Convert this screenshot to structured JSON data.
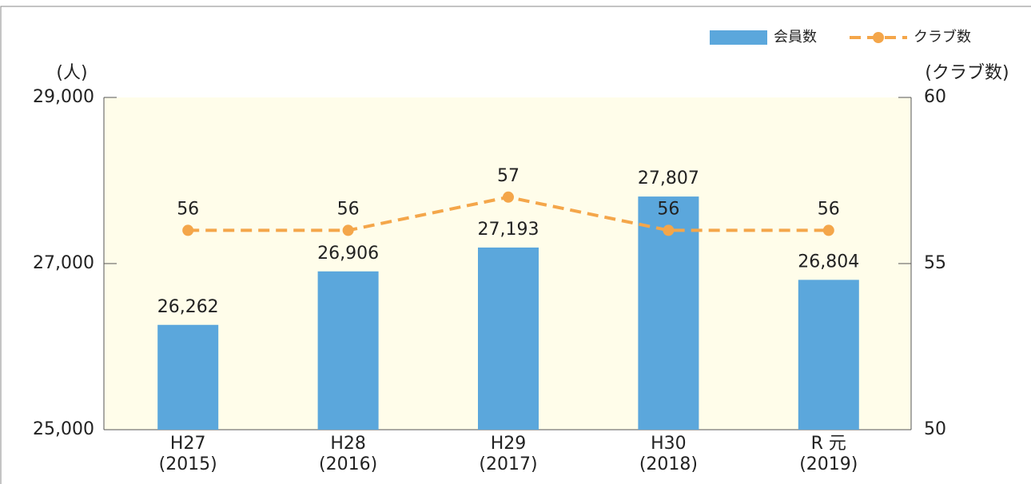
{
  "chart_data": {
    "type": "bar_line",
    "ylabel": "(人)",
    "y2label": "(クラブ数)",
    "categories": [
      [
        "H27",
        "(2015)"
      ],
      [
        "H28",
        "(2016)"
      ],
      [
        "H29",
        "(2017)"
      ],
      [
        "H30",
        "(2018)"
      ],
      [
        "R 元",
        "(2019)"
      ]
    ],
    "series": [
      {
        "name": "会員数",
        "type": "bar",
        "color": "#5ba7dc",
        "values": [
          26262,
          26906,
          27193,
          27807,
          26804
        ],
        "value_labels": [
          "26,262",
          "26,906",
          "27,193",
          "27,807",
          "26,804"
        ]
      },
      {
        "name": "クラブ数",
        "type": "line",
        "axis": "y2",
        "color": "#f4a64a",
        "values": [
          56,
          56,
          57,
          56,
          56
        ]
      }
    ],
    "ylim": [
      25000,
      29000
    ],
    "yticks": [
      {
        "value": 25000,
        "label": "25,000"
      },
      {
        "value": 27000,
        "label": "27,000"
      },
      {
        "value": 29000,
        "label": "29,000"
      }
    ],
    "y2lim": [
      50,
      60
    ],
    "y2ticks": [
      50,
      55,
      60
    ],
    "legend": "top-right"
  }
}
